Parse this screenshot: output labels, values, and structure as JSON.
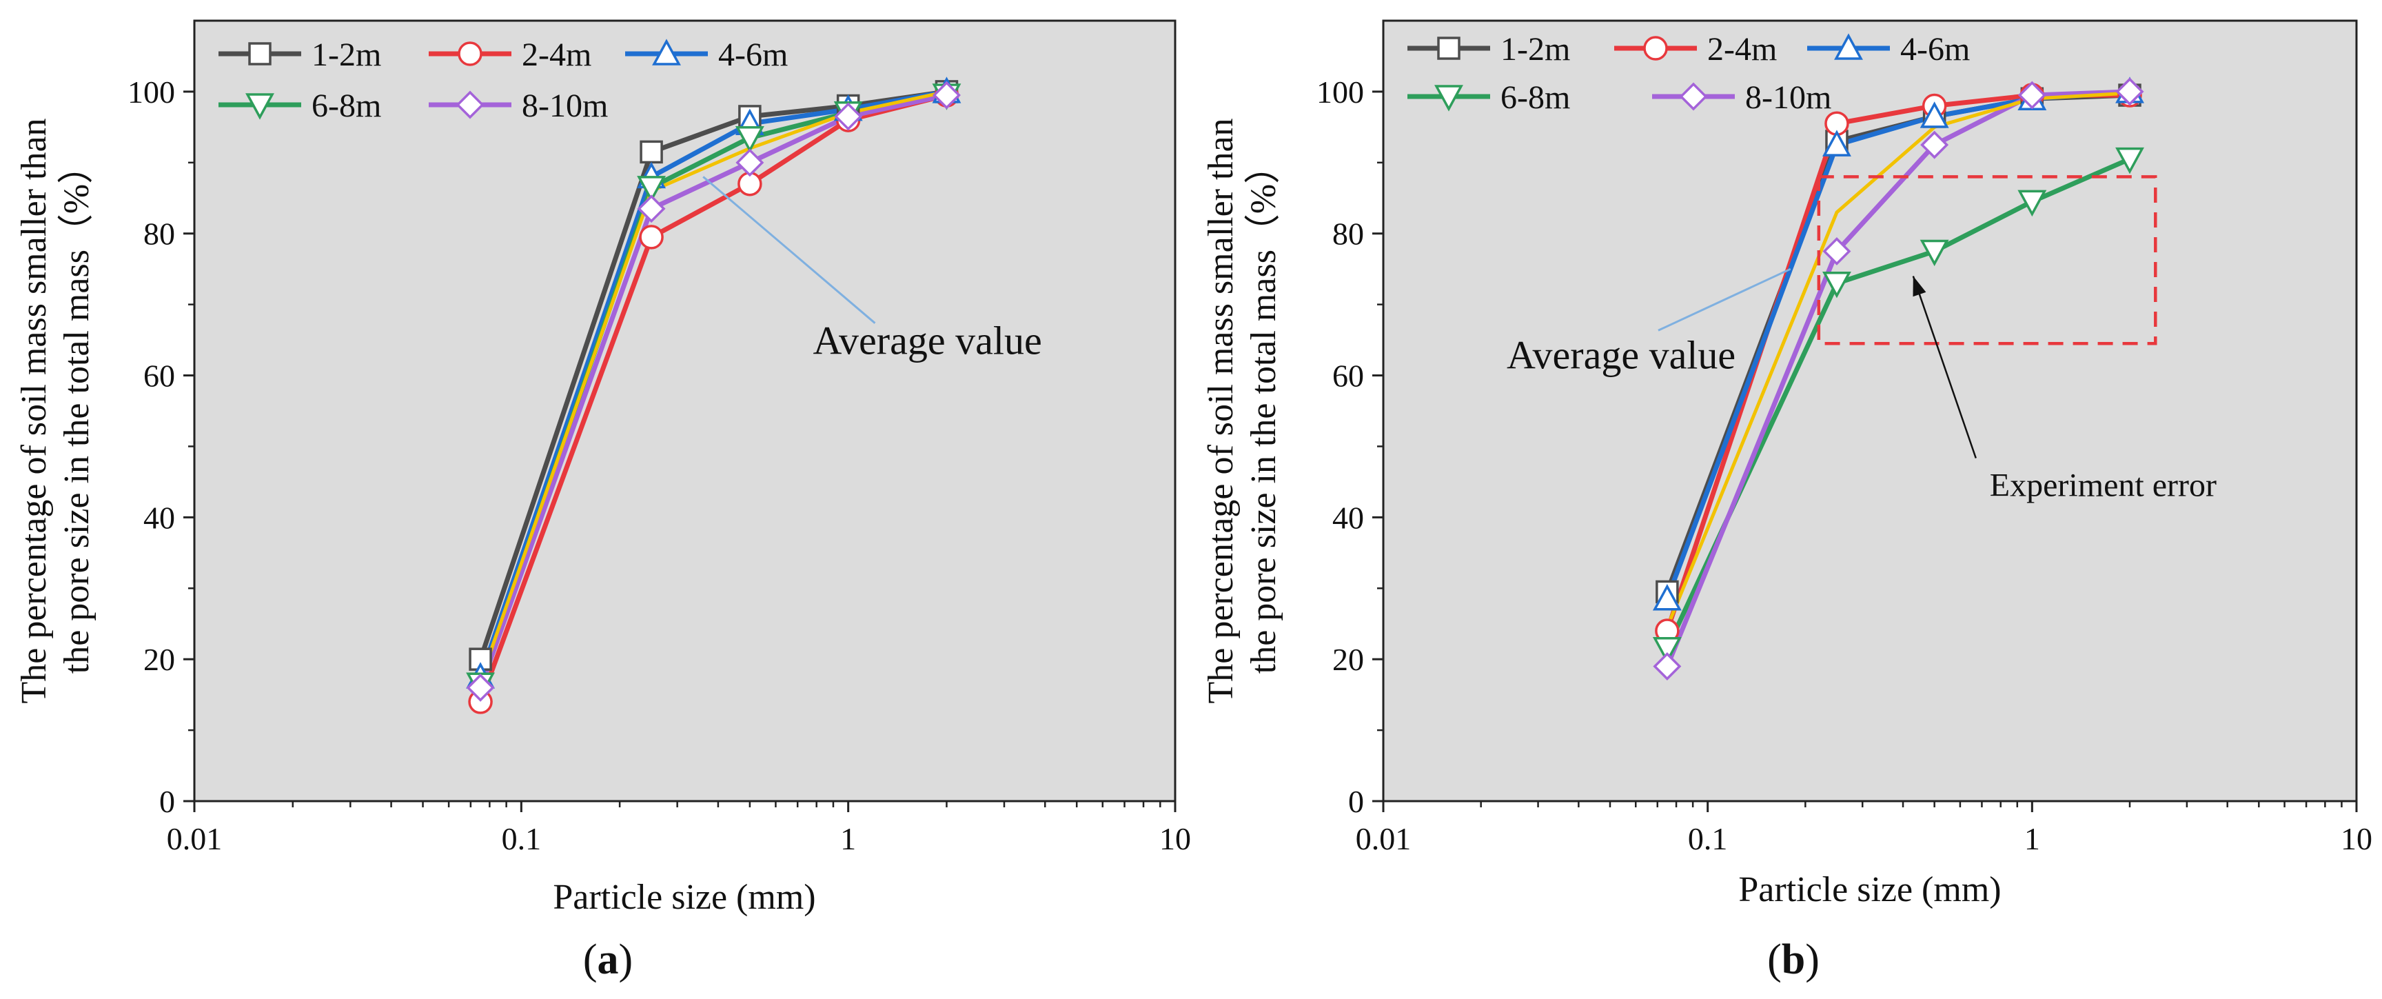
{
  "chart_data": [
    {
      "type": "line",
      "panel_label": "a",
      "xscale": "log",
      "xlabel": "Particle size (mm)",
      "ylabel_lines": [
        "The percentage of soil mass smaller than",
        "the pore size in the total mass（%）"
      ],
      "xlim": [
        0.01,
        10
      ],
      "ylim": [
        0,
        110
      ],
      "xticks": [
        0.01,
        0.1,
        1,
        10
      ],
      "xtick_labels": [
        "0.01",
        "0.1",
        "1",
        "10"
      ],
      "yticks": [
        0,
        20,
        40,
        60,
        80,
        100
      ],
      "ytick_labels": [
        "0",
        "20",
        "40",
        "60",
        "80",
        "100"
      ],
      "x": [
        0.075,
        0.25,
        0.5,
        1,
        2
      ],
      "series": [
        {
          "name": "1-2m",
          "color": "#4d4d4d",
          "marker": "square",
          "values": [
            20,
            91.5,
            96.5,
            98,
            100
          ]
        },
        {
          "name": "2-4m",
          "color": "#e8383d",
          "marker": "circle",
          "values": [
            14,
            79.5,
            87,
            96,
            99.5
          ]
        },
        {
          "name": "4-6m",
          "color": "#1f6fd1",
          "marker": "triangle-up",
          "values": [
            17.5,
            88,
            95.5,
            97.5,
            100
          ]
        },
        {
          "name": "6-8m",
          "color": "#2e9e5b",
          "marker": "triangle-down",
          "values": [
            16.5,
            86.5,
            93.5,
            97,
            99.5
          ]
        },
        {
          "name": "8-10m",
          "color": "#a463d9",
          "marker": "diamond",
          "values": [
            16,
            83.5,
            90,
            96.5,
            99.5
          ]
        },
        {
          "name": "Average",
          "color": "#f2c200",
          "marker": "none",
          "values": [
            17,
            86,
            92,
            97,
            100
          ]
        }
      ],
      "annotations": [
        {
          "text": "Average value",
          "x": 0.78,
          "y": 63,
          "arrow_to_x": 0.36,
          "arrow_to_y": 88
        }
      ],
      "legend_position": "top-left"
    },
    {
      "type": "line",
      "panel_label": "b",
      "xscale": "log",
      "xlabel": "Particle size (mm)",
      "ylabel_lines": [
        "The percentage of soil mass smaller than",
        "the pore size in the total mass（%）"
      ],
      "xlim": [
        0.01,
        10
      ],
      "ylim": [
        0,
        110
      ],
      "xticks": [
        0.01,
        0.1,
        1,
        10
      ],
      "xtick_labels": [
        "0.01",
        "0.1",
        "1",
        "10"
      ],
      "yticks": [
        0,
        20,
        40,
        60,
        80,
        100
      ],
      "ytick_labels": [
        "0",
        "20",
        "40",
        "60",
        "80",
        "100"
      ],
      "x": [
        0.075,
        0.25,
        0.5,
        1,
        2
      ],
      "series": [
        {
          "name": "1-2m",
          "color": "#4d4d4d",
          "marker": "square",
          "values": [
            29.5,
            93,
            96.5,
            99,
            99.5
          ]
        },
        {
          "name": "2-4m",
          "color": "#e8383d",
          "marker": "circle",
          "values": [
            24,
            95.5,
            98,
            99.5,
            99.5
          ]
        },
        {
          "name": "4-6m",
          "color": "#1f6fd1",
          "marker": "triangle-up",
          "values": [
            28.5,
            92.5,
            96.5,
            99,
            100
          ]
        },
        {
          "name": "6-8m",
          "color": "#2e9e5b",
          "marker": "triangle-down",
          "values": [
            21.5,
            73,
            77.5,
            84.5,
            90.5
          ]
        },
        {
          "name": "8-10m",
          "color": "#a463d9",
          "marker": "diamond",
          "values": [
            19,
            77.5,
            92.5,
            99.5,
            100
          ]
        },
        {
          "name": "Average",
          "color": "#f2c200",
          "marker": "none",
          "values": [
            24.5,
            83,
            95,
            99,
            99.8
          ]
        }
      ],
      "annotations": [
        {
          "text": "Average value",
          "x": 0.024,
          "y": 61,
          "arrow_to_x": 0.18,
          "arrow_to_y": 75
        },
        {
          "text": "Experiment error",
          "x": 0.74,
          "y": 43,
          "arrow_to_x": 0.43,
          "arrow_to_y": 74
        }
      ],
      "highlight_box": {
        "x0": 0.22,
        "x1": 2.4,
        "y0": 64.5,
        "y1": 88
      },
      "legend_position": "top-left"
    }
  ]
}
